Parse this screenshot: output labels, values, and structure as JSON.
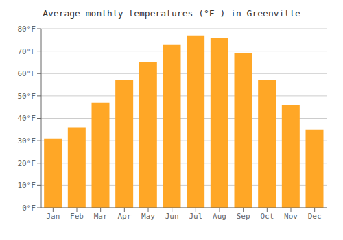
{
  "chart_data": {
    "type": "bar",
    "title": "Average monthly temperatures (°F ) in Greenville",
    "categories": [
      "Jan",
      "Feb",
      "Mar",
      "Apr",
      "May",
      "Jun",
      "Jul",
      "Aug",
      "Sep",
      "Oct",
      "Nov",
      "Dec"
    ],
    "values": [
      31,
      36,
      47,
      57,
      65,
      73,
      77,
      76,
      69,
      57,
      46,
      35
    ],
    "color": "#FFA726",
    "ylim": [
      0,
      80
    ],
    "yticks": [
      {
        "value": 0,
        "label": "0°F"
      },
      {
        "value": 10,
        "label": "10°F"
      },
      {
        "value": 20,
        "label": "20°F"
      },
      {
        "value": 30,
        "label": "30°F"
      },
      {
        "value": 40,
        "label": "40°F"
      },
      {
        "value": 50,
        "label": "50°F"
      },
      {
        "value": 60,
        "label": "60°F"
      },
      {
        "value": 70,
        "label": "70°F"
      },
      {
        "value": 80,
        "label": "80°F"
      }
    ],
    "grid": true
  }
}
